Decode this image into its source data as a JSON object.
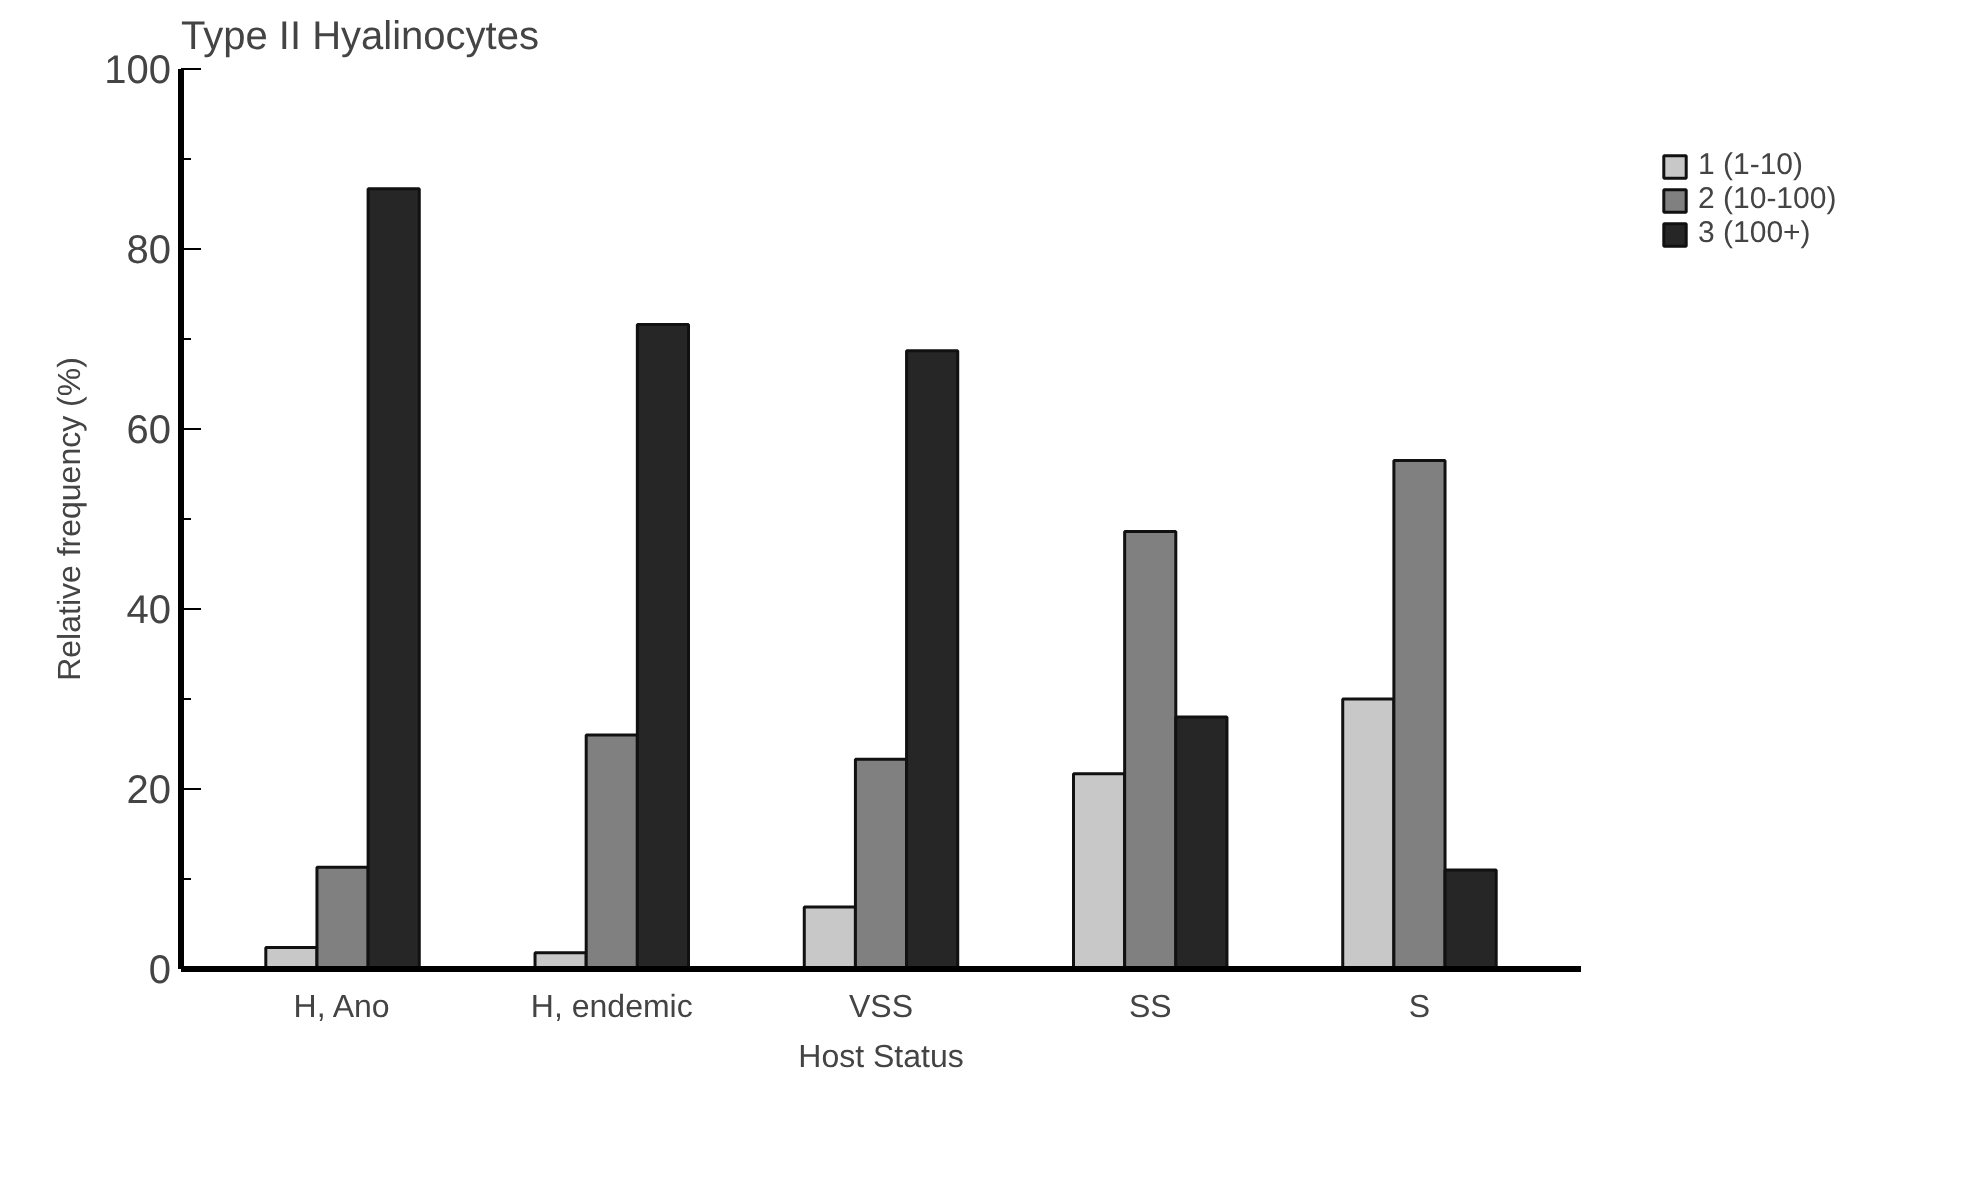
{
  "chart_data": {
    "type": "bar",
    "title": "Type II Hyalinocytes",
    "xlabel": "Host Status",
    "ylabel": "Relative frequency (%)",
    "categories": [
      "H, Ano",
      "H, endemic",
      "VSS",
      "SS",
      "S"
    ],
    "series": [
      {
        "name": "1 (1-10)",
        "color": "#c8c8c8",
        "values": [
          2.4,
          1.8,
          6.9,
          21.7,
          30
        ]
      },
      {
        "name": "2 (10-100)",
        "color": "#808080",
        "values": [
          11.3,
          26,
          23.3,
          48.6,
          56.5
        ]
      },
      {
        "name": "3 (100+)",
        "color": "#262626",
        "values": [
          86.7,
          71.6,
          68.7,
          28,
          11
        ]
      }
    ],
    "ylim": [
      0,
      100
    ],
    "yticks": [
      0,
      20,
      40,
      60,
      80,
      100
    ],
    "grid": false,
    "legend": "top right"
  }
}
